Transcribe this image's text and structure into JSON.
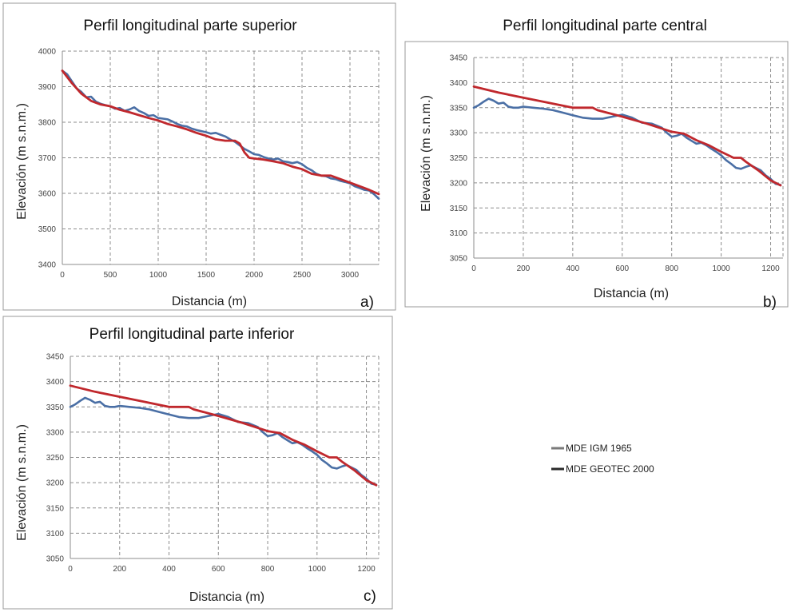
{
  "chart_data": [
    {
      "type": "line",
      "title": "Perfil longitudinal parte superior",
      "xlabel": "Distancia (m)",
      "ylabel": "Elevación (m s.n.m.)",
      "panel_letter": "a)",
      "xlim": [
        0,
        3300
      ],
      "ylim": [
        3400,
        4000
      ],
      "xticks": [
        "0",
        "500",
        "1000",
        "1500",
        "2000",
        "2500",
        "3000"
      ],
      "yticks": [
        "3400",
        "3500",
        "3600",
        "3700",
        "3800",
        "3900",
        "4000"
      ],
      "xtick_values": [
        0,
        500,
        1000,
        1500,
        2000,
        2500,
        3000
      ],
      "ytick_values": [
        3400,
        3500,
        3600,
        3700,
        3800,
        3900,
        4000
      ],
      "grid": true,
      "series": [
        {
          "color": "#4a6fa5",
          "x": [
            0,
            50,
            100,
            150,
            200,
            250,
            300,
            350,
            400,
            450,
            500,
            550,
            600,
            650,
            700,
            750,
            800,
            850,
            900,
            950,
            1000,
            1050,
            1100,
            1150,
            1200,
            1250,
            1300,
            1350,
            1400,
            1450,
            1500,
            1550,
            1600,
            1650,
            1700,
            1750,
            1800,
            1850,
            1900,
            1950,
            2000,
            2050,
            2100,
            2150,
            2200,
            2250,
            2300,
            2350,
            2400,
            2450,
            2500,
            2550,
            2600,
            2650,
            2700,
            2750,
            2800,
            2850,
            2900,
            2950,
            3000,
            3050,
            3100,
            3150,
            3200,
            3250,
            3300
          ],
          "y": [
            3945,
            3935,
            3915,
            3895,
            3885,
            3870,
            3872,
            3858,
            3852,
            3848,
            3845,
            3838,
            3840,
            3832,
            3836,
            3842,
            3832,
            3826,
            3818,
            3820,
            3812,
            3810,
            3808,
            3802,
            3795,
            3790,
            3788,
            3782,
            3778,
            3775,
            3772,
            3768,
            3770,
            3765,
            3760,
            3752,
            3745,
            3735,
            3725,
            3718,
            3710,
            3708,
            3702,
            3698,
            3695,
            3698,
            3690,
            3688,
            3685,
            3688,
            3682,
            3672,
            3665,
            3655,
            3650,
            3648,
            3642,
            3640,
            3635,
            3632,
            3628,
            3620,
            3615,
            3610,
            3608,
            3598,
            3585
          ]
        },
        {
          "color": "#c0282d",
          "x": [
            0,
            100,
            200,
            300,
            400,
            500,
            600,
            700,
            800,
            900,
            1000,
            1100,
            1200,
            1300,
            1400,
            1500,
            1600,
            1700,
            1800,
            1850,
            1900,
            1950,
            2000,
            2100,
            2200,
            2300,
            2400,
            2500,
            2600,
            2700,
            2800,
            2900,
            3000,
            3100,
            3200,
            3300
          ],
          "y": [
            3945,
            3910,
            3880,
            3860,
            3850,
            3845,
            3835,
            3828,
            3820,
            3812,
            3805,
            3795,
            3788,
            3780,
            3770,
            3762,
            3752,
            3748,
            3748,
            3740,
            3715,
            3700,
            3698,
            3695,
            3690,
            3685,
            3675,
            3668,
            3655,
            3650,
            3650,
            3640,
            3630,
            3620,
            3610,
            3598
          ]
        }
      ]
    },
    {
      "type": "line",
      "title": "Perfil longitudinal parte central",
      "xlabel": "Distancia (m)",
      "ylabel": "Elevación (m s.n.m.)",
      "panel_letter": "b)",
      "xlim": [
        0,
        1250
      ],
      "ylim": [
        3050,
        3450
      ],
      "xticks": [
        "0",
        "200",
        "400",
        "600",
        "800",
        "1000",
        "1200"
      ],
      "yticks": [
        "3050",
        "3100",
        "3150",
        "3200",
        "3250",
        "3300",
        "3350",
        "3400",
        "3450"
      ],
      "xtick_values": [
        0,
        200,
        400,
        600,
        800,
        1000,
        1200
      ],
      "ytick_values": [
        3050,
        3100,
        3150,
        3200,
        3250,
        3300,
        3350,
        3400,
        3450
      ],
      "grid": true,
      "series": [
        {
          "color": "#4a6fa5",
          "x": [
            0,
            20,
            40,
            60,
            80,
            100,
            120,
            140,
            160,
            180,
            200,
            240,
            280,
            320,
            360,
            400,
            440,
            480,
            520,
            560,
            600,
            640,
            680,
            720,
            760,
            780,
            800,
            820,
            840,
            860,
            880,
            900,
            920,
            940,
            960,
            980,
            1000,
            1020,
            1040,
            1060,
            1080,
            1100,
            1120,
            1140,
            1160,
            1180,
            1200,
            1220,
            1240
          ],
          "y": [
            3350,
            3355,
            3362,
            3368,
            3364,
            3358,
            3360,
            3352,
            3350,
            3350,
            3352,
            3350,
            3348,
            3345,
            3340,
            3335,
            3330,
            3328,
            3328,
            3332,
            3336,
            3330,
            3320,
            3318,
            3310,
            3300,
            3292,
            3294,
            3298,
            3290,
            3284,
            3278,
            3280,
            3275,
            3268,
            3262,
            3255,
            3245,
            3238,
            3230,
            3228,
            3232,
            3235,
            3230,
            3225,
            3215,
            3208,
            3198,
            3196
          ]
        },
        {
          "color": "#c0282d",
          "x": [
            0,
            100,
            200,
            300,
            400,
            480,
            500,
            600,
            700,
            800,
            850,
            900,
            950,
            1000,
            1050,
            1080,
            1100,
            1150,
            1200,
            1240
          ],
          "y": [
            3392,
            3380,
            3370,
            3360,
            3350,
            3350,
            3345,
            3332,
            3318,
            3302,
            3298,
            3285,
            3275,
            3262,
            3250,
            3250,
            3242,
            3225,
            3205,
            3195
          ]
        }
      ]
    },
    {
      "type": "line",
      "title": "Perfil longitudinal parte inferior",
      "xlabel": "Distancia (m)",
      "ylabel": "Elevación (m s.n.m.)",
      "panel_letter": "c)",
      "xlim": [
        0,
        1250
      ],
      "ylim": [
        3050,
        3450
      ],
      "xticks": [
        "0",
        "200",
        "400",
        "600",
        "800",
        "1000",
        "1200"
      ],
      "yticks": [
        "3050",
        "3100",
        "3150",
        "3200",
        "3250",
        "3300",
        "3350",
        "3400",
        "3450"
      ],
      "xtick_values": [
        0,
        200,
        400,
        600,
        800,
        1000,
        1200
      ],
      "ytick_values": [
        3050,
        3100,
        3150,
        3200,
        3250,
        3300,
        3350,
        3400,
        3450
      ],
      "grid": true,
      "series": [
        {
          "color": "#4a6fa5",
          "x": [
            0,
            20,
            40,
            60,
            80,
            100,
            120,
            140,
            160,
            180,
            200,
            240,
            280,
            320,
            360,
            400,
            440,
            480,
            520,
            560,
            600,
            640,
            680,
            720,
            760,
            780,
            800,
            820,
            840,
            860,
            880,
            900,
            920,
            940,
            960,
            980,
            1000,
            1020,
            1040,
            1060,
            1080,
            1100,
            1120,
            1140,
            1160,
            1180,
            1200,
            1220,
            1240
          ],
          "y": [
            3350,
            3355,
            3362,
            3368,
            3364,
            3358,
            3360,
            3352,
            3350,
            3350,
            3352,
            3350,
            3348,
            3345,
            3340,
            3335,
            3330,
            3328,
            3328,
            3332,
            3336,
            3330,
            3320,
            3318,
            3310,
            3300,
            3292,
            3294,
            3298,
            3290,
            3284,
            3278,
            3280,
            3275,
            3268,
            3262,
            3255,
            3245,
            3238,
            3230,
            3228,
            3232,
            3235,
            3230,
            3225,
            3215,
            3208,
            3198,
            3196
          ]
        },
        {
          "color": "#c0282d",
          "x": [
            0,
            100,
            200,
            300,
            400,
            480,
            500,
            600,
            700,
            800,
            850,
            900,
            950,
            1000,
            1050,
            1080,
            1100,
            1150,
            1200,
            1240
          ],
          "y": [
            3392,
            3380,
            3370,
            3360,
            3350,
            3350,
            3345,
            3332,
            3318,
            3302,
            3298,
            3285,
            3275,
            3262,
            3250,
            3250,
            3242,
            3225,
            3205,
            3195
          ]
        }
      ]
    }
  ],
  "legend": {
    "position": "right",
    "items": [
      {
        "label": "MDE IGM 1965",
        "color": "#7a7a7a"
      },
      {
        "label": "MDE GEOTEC 2000",
        "color": "#2a2a2a"
      }
    ]
  }
}
